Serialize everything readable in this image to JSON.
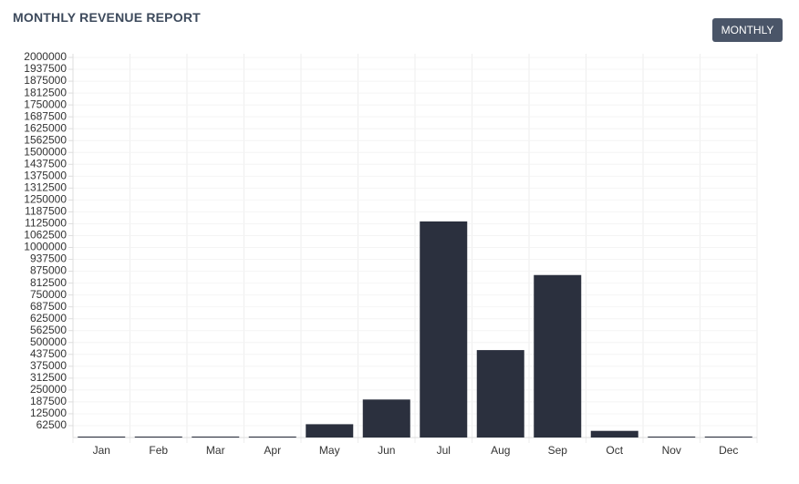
{
  "button_label": "MONTHLY",
  "chart_data": {
    "type": "bar",
    "title": "MONTHLY REVENUE REPORT",
    "categories": [
      "Jan",
      "Feb",
      "Mar",
      "Apr",
      "May",
      "Jun",
      "Jul",
      "Aug",
      "Sep",
      "Oct",
      "Nov",
      "Dec"
    ],
    "values": [
      5000,
      5000,
      5000,
      5000,
      70000,
      200000,
      1137000,
      460000,
      855000,
      35000,
      5000,
      5000
    ],
    "color": "#2b303e",
    "ylim": [
      0,
      2000000
    ],
    "yticks": [
      62500,
      125000,
      187500,
      250000,
      312500,
      375000,
      437500,
      500000,
      562500,
      625000,
      687500,
      750000,
      812500,
      875000,
      937500,
      1000000,
      1062500,
      1125000,
      1187500,
      1250000,
      1312500,
      1375000,
      1437500,
      1500000,
      1562500,
      1625000,
      1687500,
      1750000,
      1812500,
      1875000,
      1937500,
      2000000
    ],
    "grid": true
  }
}
